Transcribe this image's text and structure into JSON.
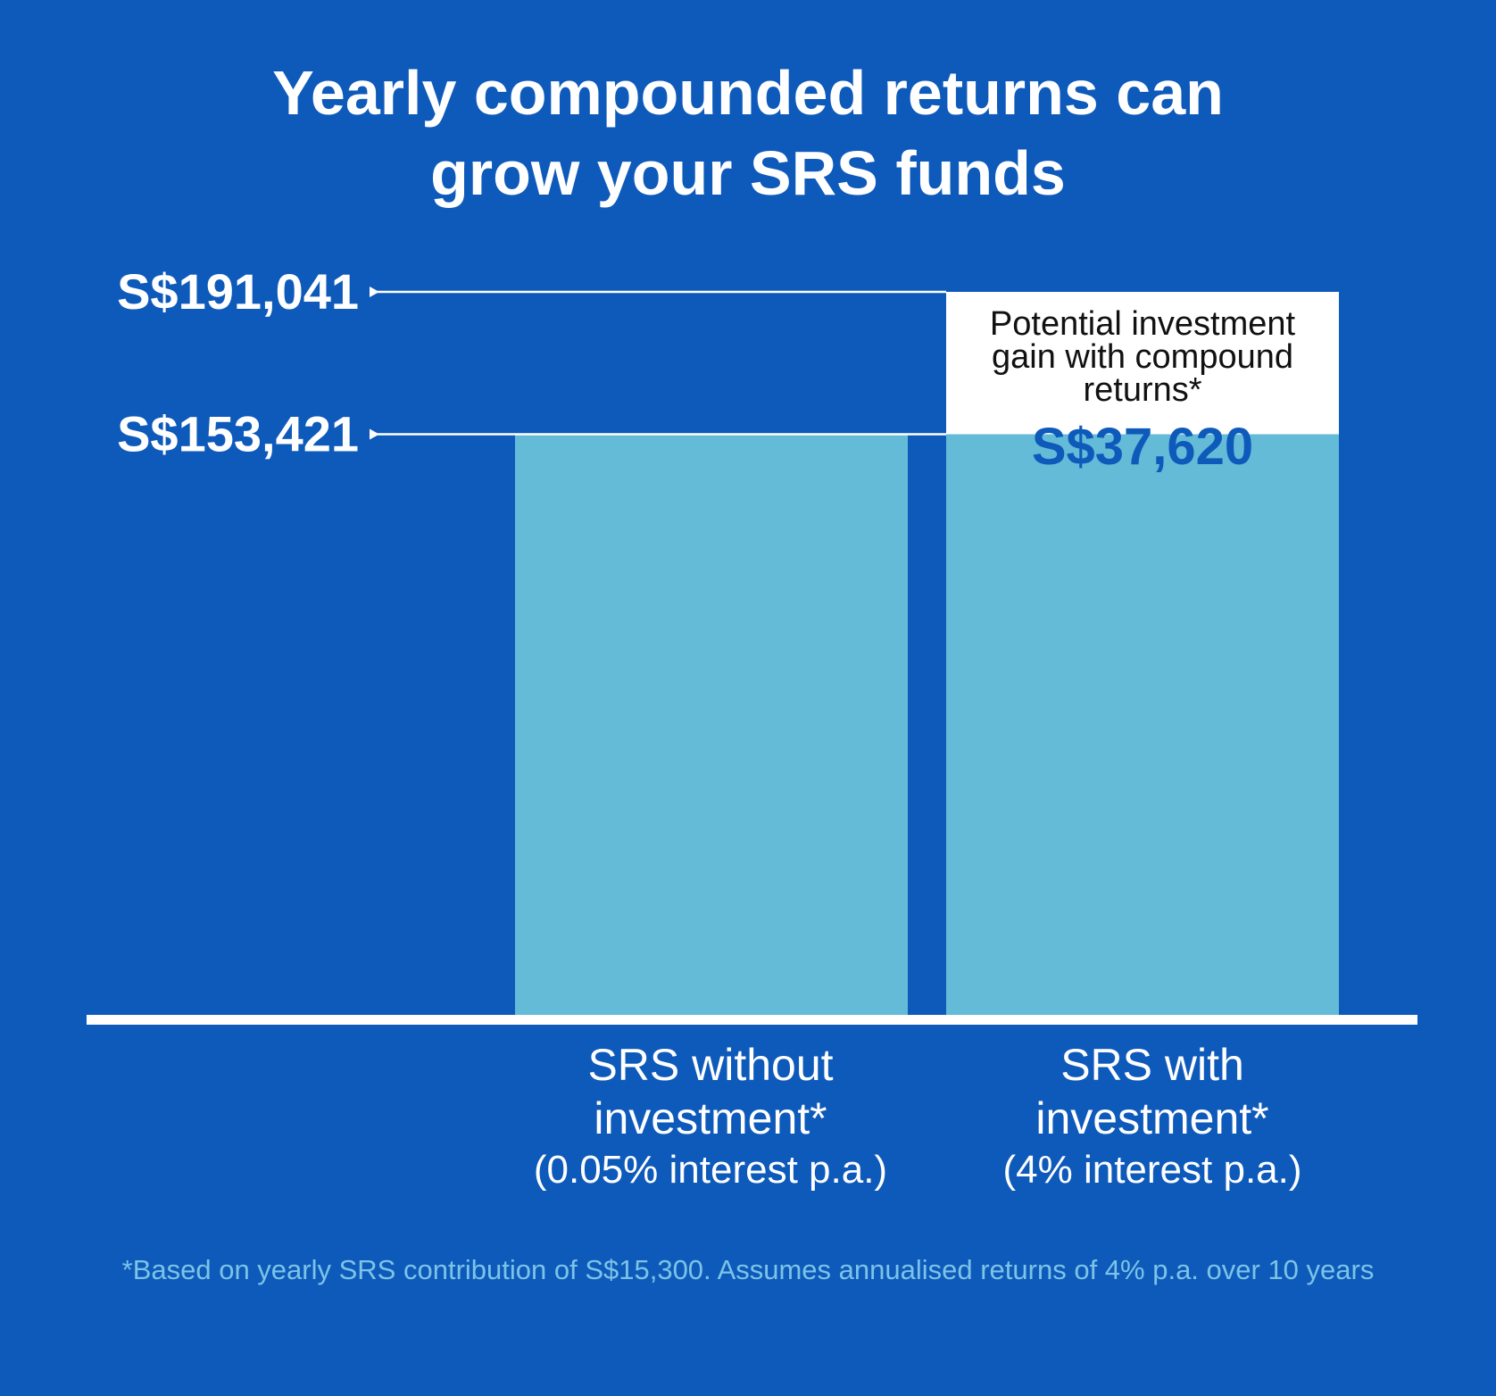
{
  "colors": {
    "background": "#0e5abb",
    "bar": "#63bbd7",
    "text": "#ffffff",
    "accent": "#0e5abb",
    "footnote": "#7cc3e6",
    "callout_bg": "#ffffff",
    "callout_text": "#111111"
  },
  "title_lines": [
    "Yearly compounded returns can",
    "grow your SRS funds"
  ],
  "chart_data": {
    "type": "bar",
    "title": "Yearly compounded returns can grow your SRS funds",
    "categories": [
      [
        "SRS without",
        "investment*",
        "(0.05% interest p.a.)"
      ],
      [
        "SRS with",
        "investment*",
        "(4% interest p.a.)"
      ]
    ],
    "base_values": [
      153421,
      153421
    ],
    "gain": {
      "category_index": 1,
      "value": 37620,
      "value_label": "S$37,620",
      "label_lines": [
        "Potential investment",
        "gain with compound",
        "returns*"
      ]
    },
    "reference_lines": [
      {
        "value": 191041,
        "label": "S$191,041"
      },
      {
        "value": 153421,
        "label": "S$153,421"
      }
    ],
    "ylim": [
      0,
      191041
    ],
    "grid": false,
    "xlabel": "",
    "ylabel": ""
  },
  "footnote": "*Based on yearly SRS contribution of S$15,300. Assumes annualised returns of 4% p.a. over 10 years"
}
